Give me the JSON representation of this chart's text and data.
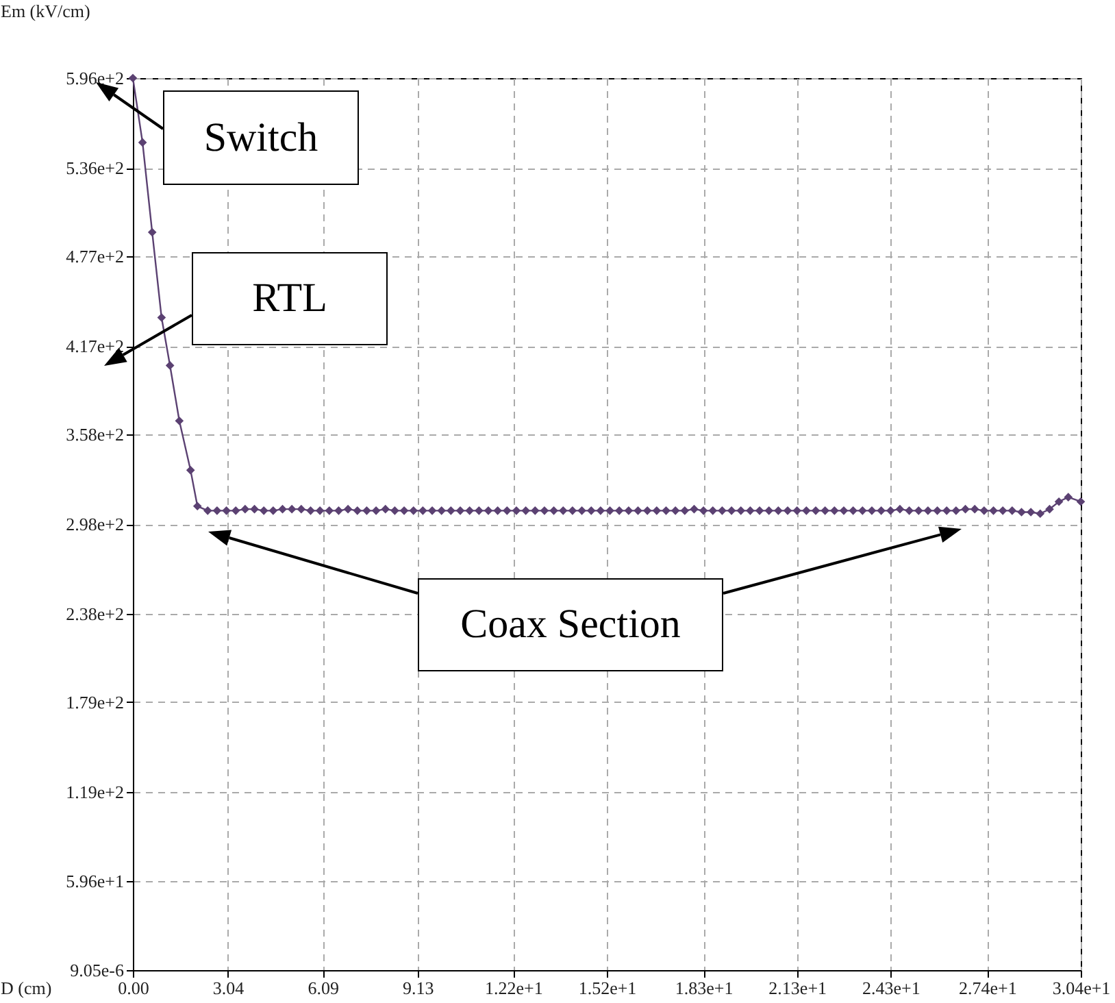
{
  "chart_data": {
    "type": "line",
    "xlabel": "D (cm)",
    "ylabel": "Em (kV/cm)",
    "x": [
      0,
      0.31,
      0.62,
      0.92,
      1.19,
      1.49,
      1.85,
      2.07,
      2.4,
      2.7,
      3.0,
      3.3,
      3.6,
      3.9,
      4.2,
      4.5,
      4.8,
      5.1,
      5.4,
      5.7,
      6.0,
      6.3,
      6.6,
      6.9,
      7.2,
      7.5,
      7.8,
      8.1,
      8.4,
      8.7,
      9.0,
      9.3,
      9.6,
      9.9,
      10.2,
      10.5,
      10.8,
      11.1,
      11.4,
      11.7,
      12.0,
      12.3,
      12.6,
      12.9,
      13.2,
      13.5,
      13.8,
      14.1,
      14.4,
      14.7,
      15.0,
      15.3,
      15.6,
      15.9,
      16.2,
      16.5,
      16.8,
      17.1,
      17.4,
      17.7,
      18.0,
      18.3,
      18.6,
      18.9,
      19.2,
      19.5,
      19.8,
      20.1,
      20.4,
      20.7,
      21.0,
      21.3,
      21.6,
      21.9,
      22.2,
      22.5,
      22.8,
      23.1,
      23.4,
      23.7,
      24.0,
      24.3,
      24.6,
      24.9,
      25.2,
      25.5,
      25.8,
      26.1,
      26.4,
      26.7,
      27.0,
      27.3,
      27.6,
      27.9,
      28.2,
      28.5,
      28.8,
      29.1,
      29.4,
      29.7,
      30.0,
      30.4
    ],
    "series": [
      {
        "color": "#5b4172",
        "values": [
          596,
          553,
          493,
          436,
          404,
          367,
          334,
          310,
          307,
          307,
          307,
          307,
          308,
          308,
          307,
          307,
          308,
          308,
          308,
          307,
          307,
          307,
          307,
          308,
          307,
          307,
          307,
          308,
          307,
          307,
          307,
          307,
          307,
          307,
          307,
          307,
          307,
          307,
          307,
          307,
          307,
          307,
          307,
          307,
          307,
          307,
          307,
          307,
          307,
          307,
          307,
          307,
          307,
          307,
          307,
          307,
          307,
          307,
          307,
          307,
          308,
          307,
          307,
          307,
          307,
          307,
          307,
          307,
          307,
          307,
          307,
          307,
          307,
          307,
          307,
          307,
          307,
          307,
          307,
          307,
          307,
          307,
          308,
          307,
          307,
          307,
          307,
          307,
          307,
          308,
          308,
          307,
          307,
          307,
          307,
          306,
          306,
          305,
          308,
          313,
          316,
          313
        ]
      }
    ],
    "xlim": [
      0,
      30.4
    ],
    "xticks": [
      {
        "value": 0,
        "label": "0.00"
      },
      3.04,
      6.09,
      9.13,
      {
        "value": 12.2,
        "label": "1.22e+1"
      },
      {
        "value": 15.2,
        "label": "1.52e+1"
      },
      {
        "value": 18.3,
        "label": "1.83e+1"
      },
      {
        "value": 21.3,
        "label": "2.13e+1"
      },
      {
        "value": 24.3,
        "label": "2.43e+1"
      },
      {
        "value": 27.4,
        "label": "2.74e+1"
      },
      {
        "value": 30.4,
        "label": "3.04e+1"
      }
    ],
    "ylim": [
      9.05e-06,
      596
    ],
    "yticks": [
      {
        "value": 9.05e-06,
        "label": "9.05e-6"
      },
      {
        "value": 59.6,
        "label": "5.96e+1"
      },
      {
        "value": 119,
        "label": "1.19e+2"
      },
      {
        "value": 179,
        "label": "1.79e+2"
      },
      {
        "value": 238,
        "label": "2.38e+2"
      },
      {
        "value": 298,
        "label": "2.98e+2"
      },
      {
        "value": 358,
        "label": "3.58e+2"
      },
      {
        "value": 417,
        "label": "4.17e+2"
      },
      {
        "value": 477,
        "label": "4.77e+2"
      },
      {
        "value": 536,
        "label": "5.36e+2"
      },
      {
        "value": 596,
        "label": "5.96e+2"
      }
    ],
    "grid": true,
    "marker": "diamond",
    "line_style": "solid",
    "annotations": [
      "Switch",
      "RTL",
      "Coax Section"
    ]
  }
}
